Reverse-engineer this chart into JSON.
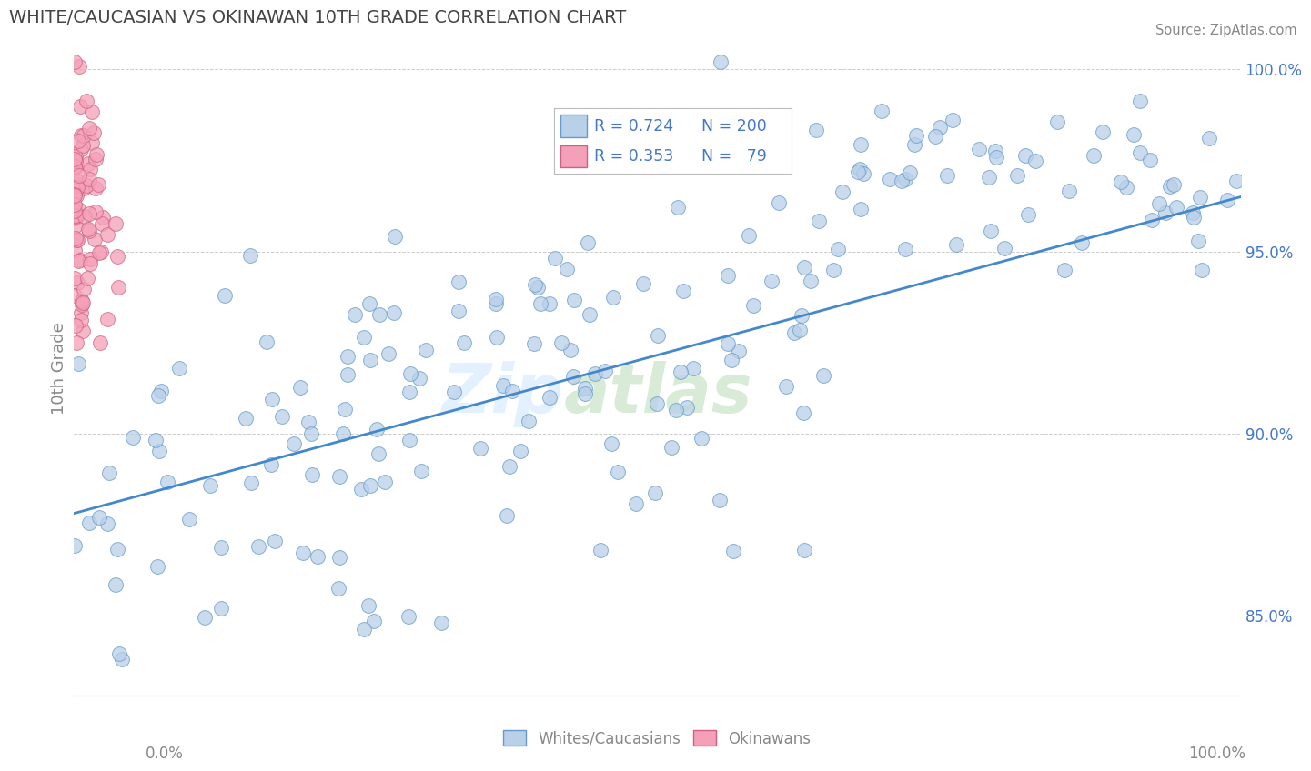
{
  "title": "WHITE/CAUCASIAN VS OKINAWAN 10TH GRADE CORRELATION CHART",
  "source": "Source: ZipAtlas.com",
  "ylabel": "10th Grade",
  "ytick_labels": [
    "85.0%",
    "90.0%",
    "95.0%",
    "100.0%"
  ],
  "ytick_values": [
    0.85,
    0.9,
    0.95,
    1.0
  ],
  "xmin": 0.0,
  "xmax": 1.0,
  "ymin": 0.828,
  "ymax": 1.008,
  "blue_R": 0.724,
  "blue_N": 200,
  "pink_R": 0.353,
  "pink_N": 79,
  "blue_color": "#b8d0e8",
  "pink_color": "#f4a0b8",
  "blue_edge": "#6699cc",
  "pink_edge": "#d06080",
  "line_color": "#4488cc",
  "legend_label_blue": "Whites/Caucasians",
  "legend_label_pink": "Okinawans",
  "watermark_zip": "Zip",
  "watermark_atlas": "atlas",
  "title_color": "#444444",
  "legend_text_color": "#4477cc",
  "axis_label_color": "#888888",
  "tick_color": "#888888",
  "grid_color": "#cccccc",
  "line_start_y": 0.878,
  "line_end_y": 0.965
}
